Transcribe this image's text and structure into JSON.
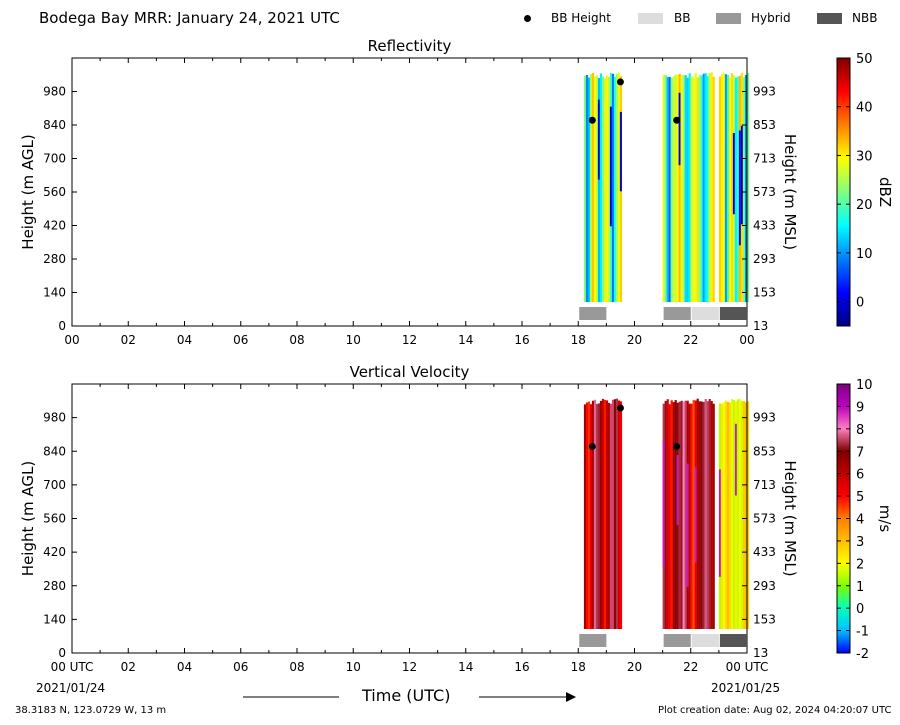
{
  "page_title": "Bodega Bay MRR:  January 24, 2021 UTC",
  "legend": [
    {
      "label": "BB Height",
      "kind": "dot",
      "color": "#000000"
    },
    {
      "label": "BB",
      "kind": "box",
      "color": "#dddddd"
    },
    {
      "label": "Hybrid",
      "kind": "box",
      "color": "#999999"
    },
    {
      "label": "NBB",
      "kind": "box",
      "color": "#555555"
    }
  ],
  "x_ticks": [
    "00",
    "02",
    "04",
    "06",
    "08",
    "10",
    "12",
    "14",
    "16",
    "18",
    "20",
    "22",
    "00"
  ],
  "x_ticks_bottom": [
    "00 UTC",
    "02",
    "04",
    "06",
    "08",
    "10",
    "12",
    "14",
    "16",
    "18",
    "20",
    "22",
    "00 UTC"
  ],
  "date_start": "2021/01/24",
  "date_end": "2021/01/25",
  "xlabel": "Time (UTC)",
  "footer_left": "38.3183 N, 123.0729 W, 13 m",
  "footer_right": "Plot creation date: Aug 02, 2024 04:20:07 UTC",
  "chart_data": [
    {
      "type": "heatmap",
      "title": "Reflectivity",
      "ylabel": "Height (m AGL)",
      "ylabel_right": "Height (m MSL)",
      "ylim": [
        0,
        1120
      ],
      "y_ticks": [
        0,
        140,
        280,
        420,
        560,
        700,
        840,
        980
      ],
      "y_ticks_right": [
        "13",
        "153",
        "293",
        "433",
        "573",
        "713",
        "853",
        "993"
      ],
      "xlim_hours": [
        0,
        24
      ],
      "colorbar": {
        "label": "dBZ",
        "min": -5,
        "max": 50,
        "ticks": [
          0,
          10,
          20,
          30,
          40,
          50
        ],
        "stops": [
          "#00007f",
          "#0000ff",
          "#007fff",
          "#00ffff",
          "#7fff7f",
          "#ffff00",
          "#ff7f00",
          "#ff0000",
          "#7f0000"
        ]
      },
      "data_segments_hours": [
        [
          18.2,
          19.5
        ],
        [
          21.0,
          22.8
        ],
        [
          23.0,
          24.0
        ]
      ],
      "data_height_range_m": [
        100,
        1060
      ],
      "bb_height_points": [
        {
          "hour": 18.5,
          "height": 860
        },
        {
          "hour": 19.5,
          "height": 1020
        },
        {
          "hour": 21.5,
          "height": 860
        }
      ],
      "bb_class_bars": [
        {
          "start": 18.0,
          "end": 19.0,
          "class": "Hybrid"
        },
        {
          "start": 21.0,
          "end": 22.0,
          "class": "Hybrid"
        },
        {
          "start": 22.0,
          "end": 23.0,
          "class": "BB"
        },
        {
          "start": 23.0,
          "end": 24.0,
          "class": "NBB"
        }
      ]
    },
    {
      "type": "heatmap",
      "title": "Vertical Velocity",
      "ylabel": "Height (m AGL)",
      "ylabel_right": "Height (m MSL)",
      "ylim": [
        0,
        1120
      ],
      "y_ticks": [
        0,
        140,
        280,
        420,
        560,
        700,
        840,
        980
      ],
      "y_ticks_right": [
        "13",
        "153",
        "293",
        "433",
        "573",
        "713",
        "853",
        "993"
      ],
      "xlim_hours": [
        0,
        24
      ],
      "colorbar": {
        "label": "m/s",
        "min": -2,
        "max": 10,
        "ticks": [
          -2,
          -1,
          0,
          1,
          2,
          3,
          4,
          5,
          6,
          7,
          8,
          9,
          10
        ],
        "stops": [
          "#0000ff",
          "#00bfff",
          "#00ffbf",
          "#7fff00",
          "#ffff00",
          "#ffbf00",
          "#ff7f00",
          "#ff0000",
          "#bf0000",
          "#7f0000",
          "#ff7fbf",
          "#bf00bf",
          "#7f007f"
        ]
      },
      "data_segments_hours": [
        [
          18.2,
          19.5
        ],
        [
          21.0,
          22.8
        ],
        [
          23.0,
          24.0
        ]
      ],
      "data_height_range_m": [
        100,
        1060
      ],
      "bb_height_points": [
        {
          "hour": 18.5,
          "height": 860
        },
        {
          "hour": 19.5,
          "height": 1020
        },
        {
          "hour": 21.5,
          "height": 860
        }
      ],
      "bb_class_bars": [
        {
          "start": 18.0,
          "end": 19.0,
          "class": "Hybrid"
        },
        {
          "start": 21.0,
          "end": 22.0,
          "class": "Hybrid"
        },
        {
          "start": 22.0,
          "end": 23.0,
          "class": "BB"
        },
        {
          "start": 23.0,
          "end": 24.0,
          "class": "NBB"
        }
      ]
    }
  ]
}
